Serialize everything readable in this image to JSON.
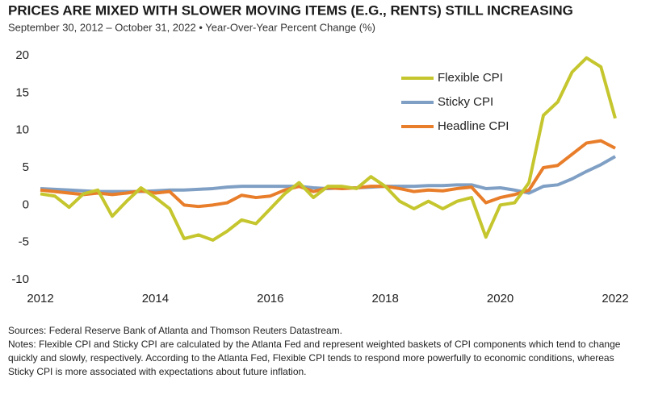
{
  "chart_data": {
    "type": "line",
    "title": "PRICES ARE MIXED WITH SLOWER MOVING ITEMS (E.G., RENTS) STILL INCREASING",
    "subtitle": "September 30, 2012 – October 31, 2022 • Year-Over-Year Percent Change (%)",
    "x": [
      2012,
      2012.25,
      2012.5,
      2012.75,
      2013,
      2013.25,
      2013.5,
      2013.75,
      2014,
      2014.25,
      2014.5,
      2014.75,
      2015,
      2015.25,
      2015.5,
      2015.75,
      2016,
      2016.25,
      2016.5,
      2016.75,
      2017,
      2017.25,
      2017.5,
      2017.75,
      2018,
      2018.25,
      2018.5,
      2018.75,
      2019,
      2019.25,
      2019.5,
      2019.75,
      2020,
      2020.25,
      2020.5,
      2020.75,
      2021,
      2021.25,
      2021.5,
      2021.75,
      2022
    ],
    "series": [
      {
        "name": "Flexible CPI",
        "color": "#c5c62e",
        "values": [
          1.5,
          1.2,
          -0.3,
          1.5,
          2.0,
          -1.5,
          0.5,
          2.3,
          1.0,
          -0.5,
          -4.5,
          -4.0,
          -4.7,
          -3.5,
          -2.0,
          -2.5,
          -0.5,
          1.5,
          3.0,
          1.0,
          2.5,
          2.5,
          2.2,
          3.8,
          2.5,
          0.5,
          -0.5,
          0.5,
          -0.5,
          0.5,
          1.0,
          -4.3,
          0.0,
          0.3,
          3.0,
          12,
          13.8,
          17.8,
          19.7,
          18.5,
          11.6
        ]
      },
      {
        "name": "Sticky CPI",
        "color": "#7f9fc4",
        "values": [
          2.2,
          2.1,
          2.0,
          1.9,
          1.8,
          1.8,
          1.8,
          1.8,
          1.9,
          2.0,
          2.0,
          2.1,
          2.2,
          2.4,
          2.5,
          2.5,
          2.5,
          2.5,
          2.5,
          2.3,
          2.2,
          2.3,
          2.3,
          2.4,
          2.5,
          2.5,
          2.5,
          2.6,
          2.6,
          2.7,
          2.7,
          2.2,
          2.3,
          2.0,
          1.6,
          2.5,
          2.7,
          3.5,
          4.5,
          5.4,
          6.5
        ]
      },
      {
        "name": "Headline CPI",
        "color": "#e87d2a",
        "values": [
          2.0,
          1.8,
          1.6,
          1.4,
          1.6,
          1.4,
          1.6,
          1.9,
          1.6,
          1.8,
          0.0,
          -0.2,
          0.0,
          0.3,
          1.3,
          1.0,
          1.2,
          2.0,
          2.5,
          1.8,
          2.3,
          2.2,
          2.3,
          2.5,
          2.5,
          2.2,
          1.8,
          2.0,
          1.9,
          2.2,
          2.4,
          0.3,
          1.0,
          1.4,
          2.0,
          5.0,
          5.3,
          6.8,
          8.3,
          8.6,
          7.6
        ]
      }
    ],
    "xlim": [
      2012,
      2022
    ],
    "xticks": [
      2012,
      2014,
      2016,
      2018,
      2020,
      2022
    ],
    "ylim": [
      -10,
      20
    ],
    "yticks": [
      -10,
      -5,
      0,
      5,
      10,
      15,
      20
    ],
    "grid": false,
    "legend": "upper right",
    "sources": "Sources: Federal Reserve Bank of Atlanta and Thomson Reuters Datastream.",
    "notes": "Notes: Flexible CPI and Sticky CPI are calculated by the Atlanta Fed and represent weighted baskets of CPI components which tend to change quickly and slowly, respectively. According to the Atlanta Fed, Flexible CPI tends to respond more powerfully to economic conditions, whereas Sticky CPI is more associated with expectations about future inflation."
  }
}
